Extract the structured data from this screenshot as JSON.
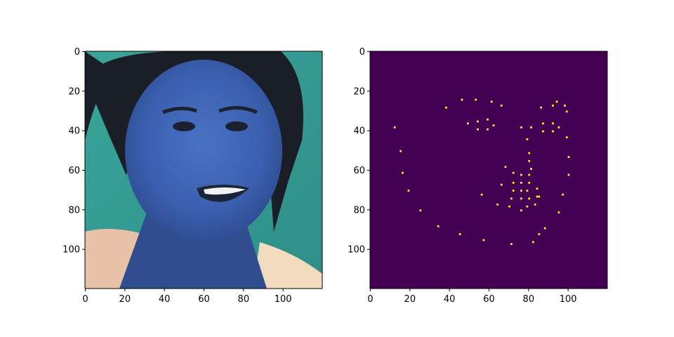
{
  "chart_data": [
    {
      "type": "image",
      "content": "face photograph (channels swapped, bluish skin on teal background)",
      "xlim": [
        0,
        120
      ],
      "ylim": [
        120,
        0
      ],
      "x_ticks": [
        "0",
        "20",
        "40",
        "60",
        "80",
        "100"
      ],
      "y_ticks": [
        "0",
        "20",
        "40",
        "60",
        "80",
        "100"
      ]
    },
    {
      "type": "heatmap",
      "content": "binary landmark mask (yellow dots on dark purple)",
      "colors": {
        "background": "#440154",
        "point": "#fde725"
      },
      "xlim": [
        0,
        120
      ],
      "ylim": [
        120,
        0
      ],
      "x_ticks": [
        "0",
        "20",
        "40",
        "60",
        "80",
        "100"
      ],
      "y_ticks": [
        "0",
        "20",
        "40",
        "60",
        "80",
        "100"
      ],
      "points": [
        [
          12,
          38
        ],
        [
          15,
          50
        ],
        [
          16,
          61
        ],
        [
          19,
          70
        ],
        [
          25,
          80
        ],
        [
          34,
          88
        ],
        [
          45,
          92
        ],
        [
          57,
          95
        ],
        [
          71,
          97
        ],
        [
          82,
          96
        ],
        [
          85,
          92
        ],
        [
          88,
          89
        ],
        [
          95,
          81
        ],
        [
          97,
          72
        ],
        [
          100,
          62
        ],
        [
          100,
          53
        ],
        [
          99,
          43
        ],
        [
          99,
          30
        ],
        [
          98,
          27
        ],
        [
          94,
          25
        ],
        [
          92,
          27
        ],
        [
          86,
          28
        ],
        [
          38,
          28
        ],
        [
          46,
          24
        ],
        [
          53,
          24
        ],
        [
          61,
          25
        ],
        [
          66,
          27
        ],
        [
          49,
          36
        ],
        [
          54,
          35
        ],
        [
          59,
          34
        ],
        [
          62,
          37
        ],
        [
          59,
          39
        ],
        [
          54,
          39
        ],
        [
          76,
          38
        ],
        [
          81,
          38
        ],
        [
          87,
          36
        ],
        [
          92,
          36
        ],
        [
          95,
          38
        ],
        [
          92,
          40
        ],
        [
          87,
          40
        ],
        [
          79,
          44
        ],
        [
          80,
          51
        ],
        [
          80,
          55
        ],
        [
          81,
          59
        ],
        [
          80,
          62
        ],
        [
          76,
          62
        ],
        [
          68,
          58
        ],
        [
          72,
          61
        ],
        [
          66,
          67
        ],
        [
          72,
          66
        ],
        [
          76,
          66
        ],
        [
          80,
          66
        ],
        [
          84,
          69
        ],
        [
          72,
          70
        ],
        [
          76,
          70
        ],
        [
          79,
          70
        ],
        [
          85,
          73
        ],
        [
          84,
          73
        ],
        [
          80,
          74
        ],
        [
          76,
          74
        ],
        [
          71,
          74
        ],
        [
          56,
          72
        ],
        [
          64,
          77
        ],
        [
          70,
          78
        ],
        [
          76,
          80
        ],
        [
          79,
          78
        ],
        [
          83,
          77
        ]
      ]
    }
  ]
}
